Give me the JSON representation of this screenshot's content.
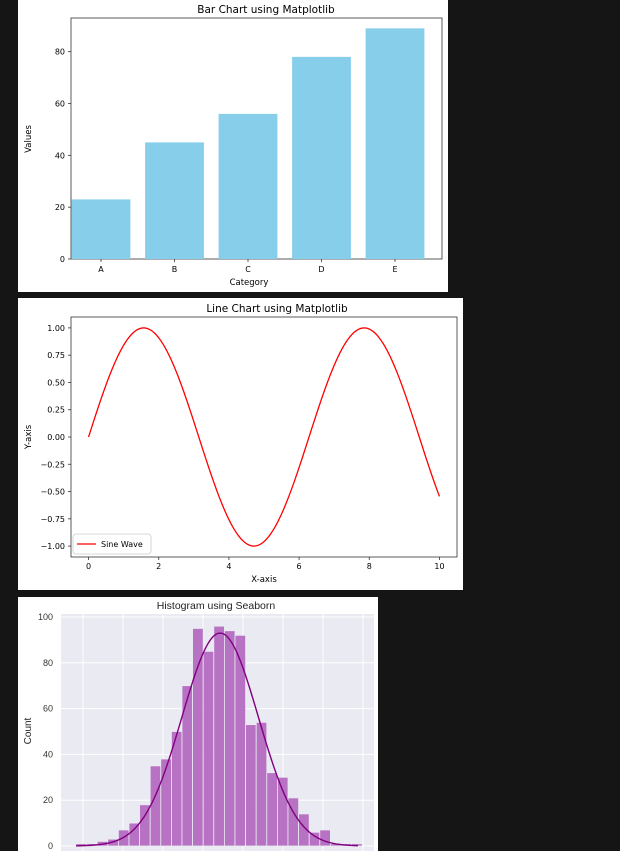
{
  "chart_data": [
    {
      "type": "bar",
      "title": "Bar Chart using Matplotlib",
      "xlabel": "Category",
      "ylabel": "Values",
      "categories": [
        "A",
        "B",
        "C",
        "D",
        "E"
      ],
      "values": [
        23,
        45,
        56,
        78,
        89
      ],
      "color": "#87ceeb",
      "ylim": [
        0,
        93
      ],
      "yticks": [
        0,
        20,
        40,
        60,
        80
      ]
    },
    {
      "type": "line",
      "title": "Line Chart using Matplotlib",
      "xlabel": "X-axis",
      "ylabel": "Y-axis",
      "series": [
        {
          "name": "Sine Wave",
          "color": "#ff0000",
          "function": "sin(x)",
          "x": [
            0,
            0.5,
            1,
            1.5,
            2,
            2.5,
            3,
            3.5,
            4,
            4.5,
            5,
            5.5,
            6,
            6.5,
            7,
            7.5,
            8,
            8.5,
            9,
            9.5,
            10
          ],
          "y": [
            0,
            0.479,
            0.841,
            0.997,
            0.909,
            0.598,
            0.141,
            -0.351,
            -0.757,
            -0.978,
            -0.959,
            -0.706,
            -0.279,
            0.215,
            0.657,
            0.938,
            0.989,
            0.798,
            0.412,
            -0.075,
            -0.544
          ]
        }
      ],
      "xlim": [
        -0.5,
        10.5
      ],
      "ylim": [
        -1.1,
        1.1
      ],
      "xticks": [
        0,
        2,
        4,
        6,
        8,
        10
      ],
      "yticks": [
        "1.00",
        "0.75",
        "0.50",
        "0.25",
        "0.00",
        "−0.25",
        "−0.50",
        "−0.75",
        "−1.00"
      ],
      "legend": "lower-left"
    },
    {
      "type": "bar",
      "title": "Histogram using Seaborn",
      "ylabel": "Count",
      "bins_counts": [
        1,
        1,
        2,
        3,
        7,
        10,
        18,
        35,
        38,
        50,
        70,
        95,
        85,
        96,
        94,
        92,
        53,
        54,
        32,
        30,
        21,
        14,
        6,
        7,
        1,
        1,
        1
      ],
      "kde_color": "#800080",
      "bar_color": "#b56cc0",
      "ylim": [
        0,
        100
      ],
      "yticks": [
        0,
        20,
        40,
        60,
        80,
        100
      ],
      "style": "seaborn-darkgrid"
    }
  ]
}
